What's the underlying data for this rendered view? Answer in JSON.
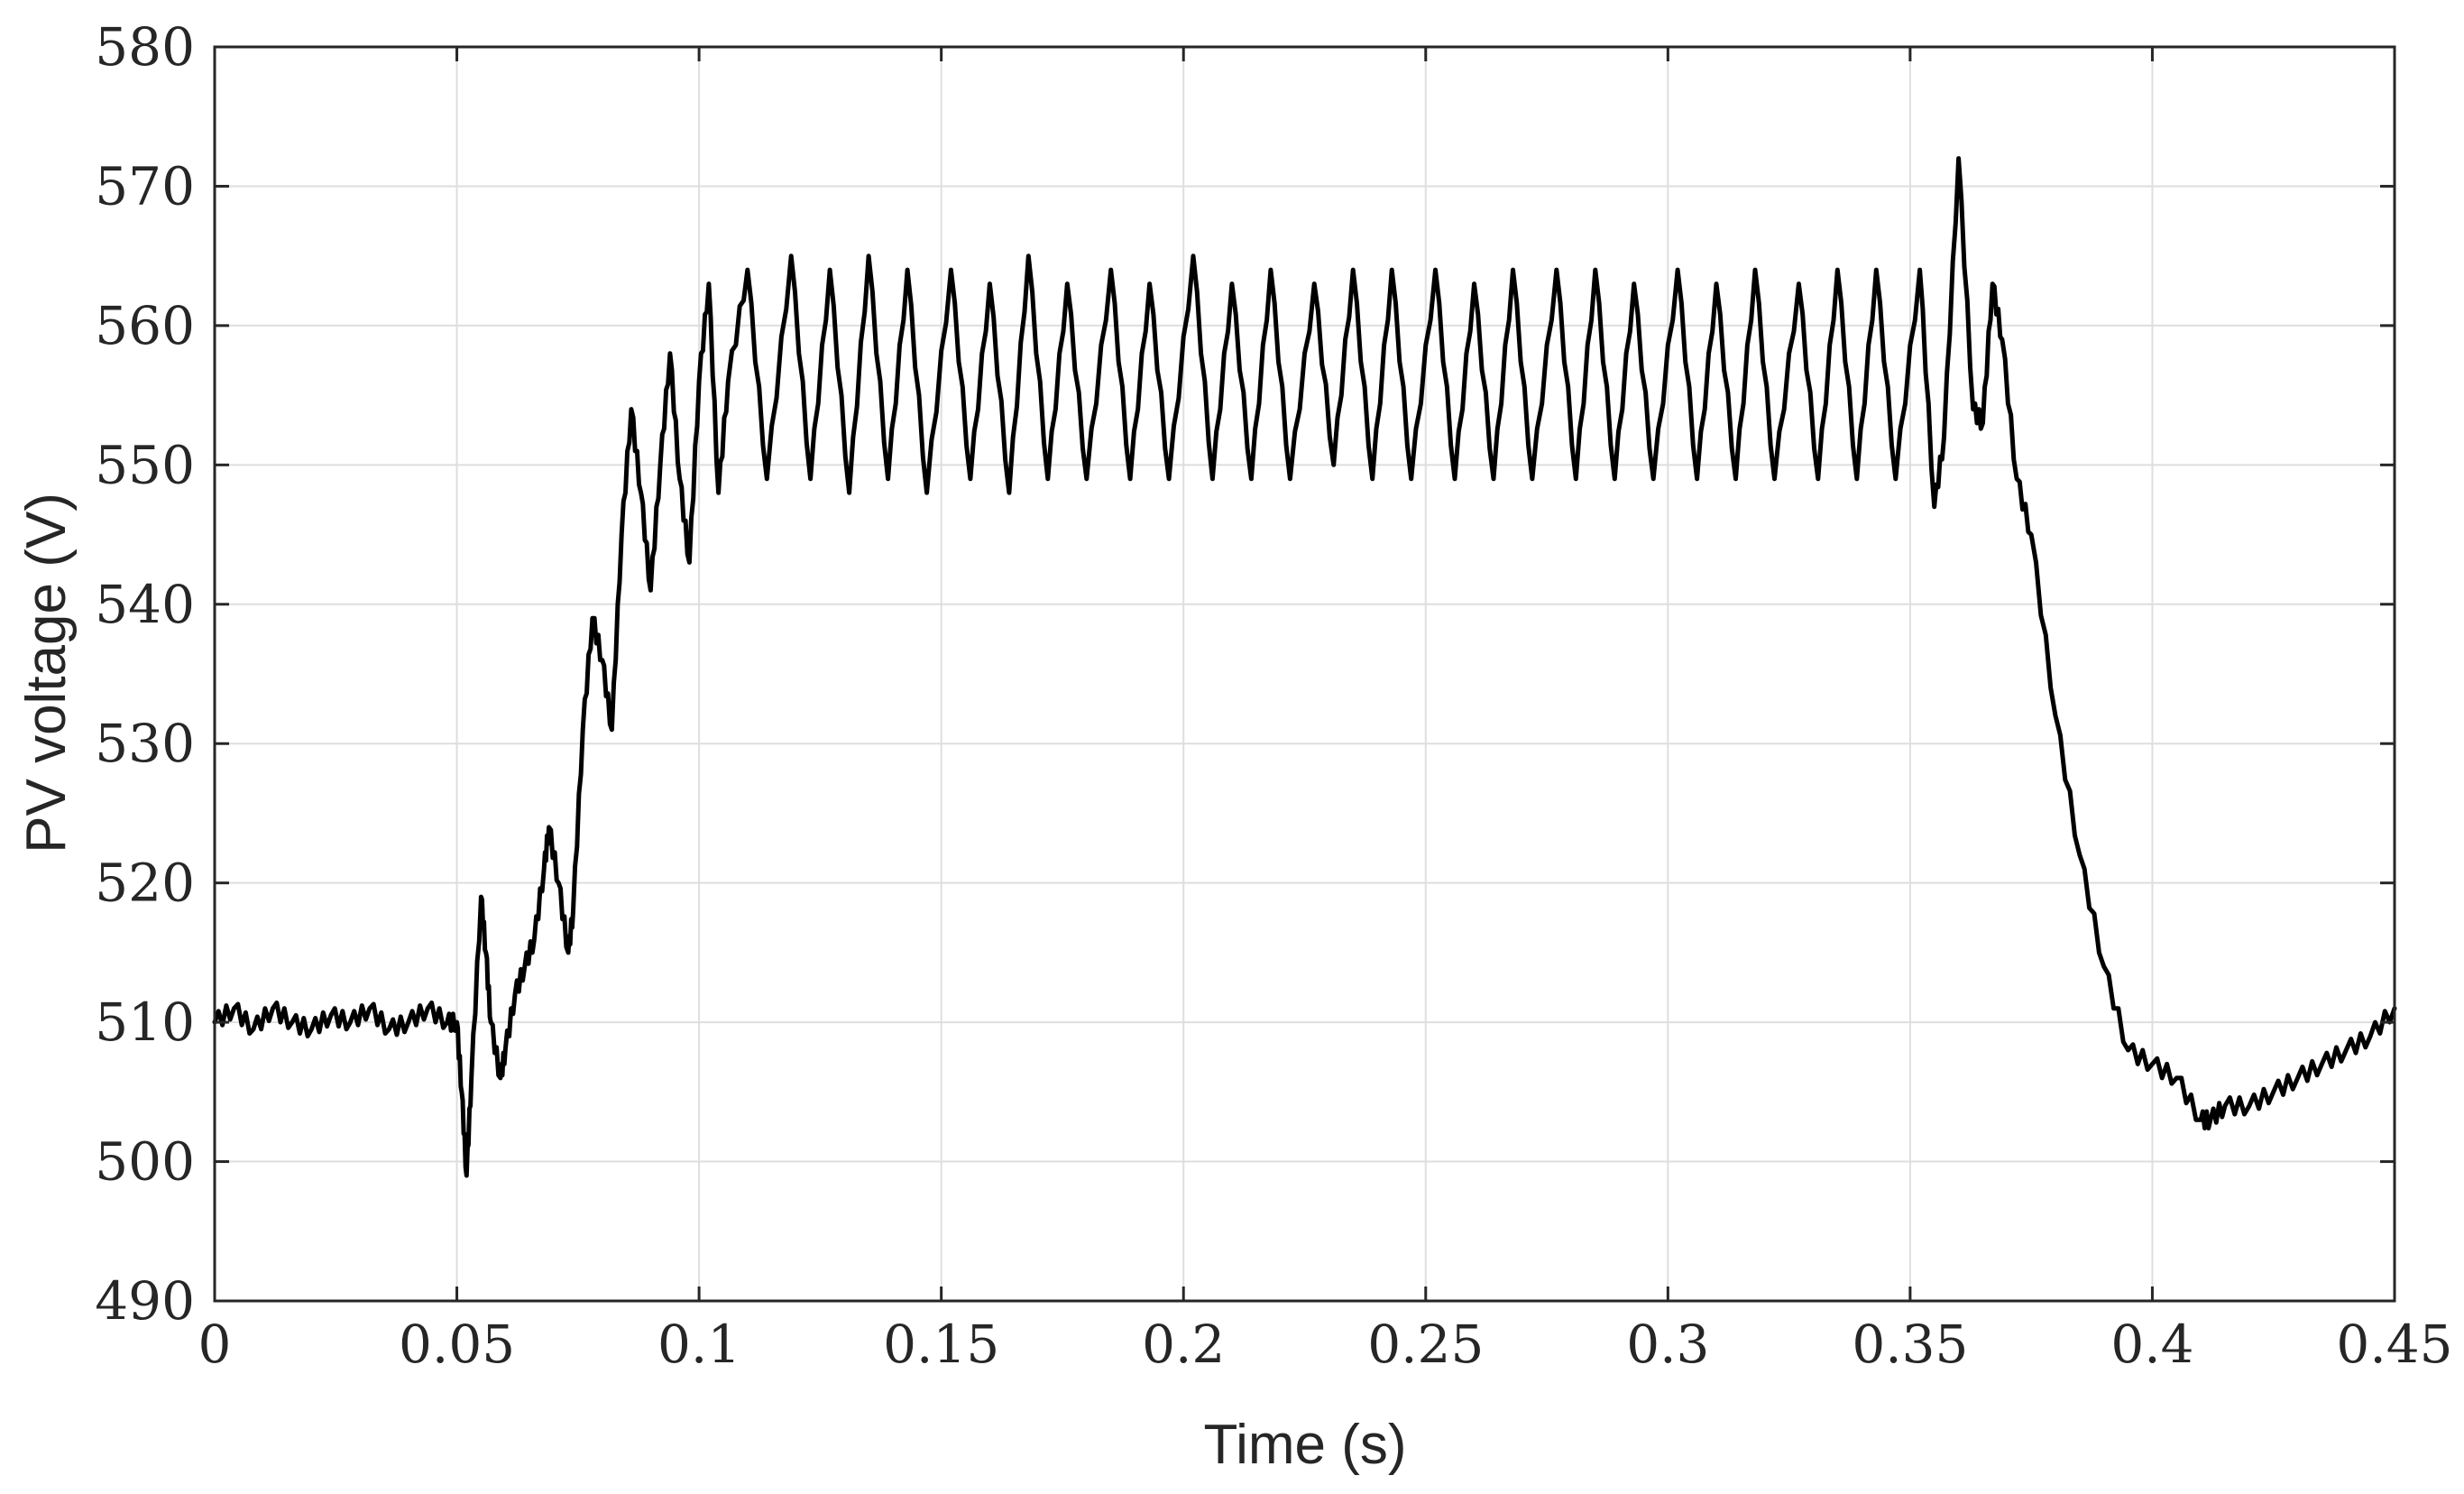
{
  "chart_data": {
    "type": "line",
    "title": "",
    "xlabel": "Time (s)",
    "ylabel": "PV voltage (V)",
    "xlim": [
      0,
      0.45
    ],
    "ylim": [
      490,
      580
    ],
    "x_ticks": [
      0,
      0.05,
      0.1,
      0.15,
      0.2,
      0.25,
      0.3,
      0.35,
      0.4,
      0.45
    ],
    "x_tick_labels": [
      "0",
      "0.05",
      "0.1",
      "0.15",
      "0.2",
      "0.25",
      "0.3",
      "0.35",
      "0.4",
      "0.45"
    ],
    "y_ticks": [
      490,
      500,
      510,
      520,
      530,
      540,
      550,
      560,
      570,
      580
    ],
    "y_tick_labels": [
      "490",
      "500",
      "510",
      "520",
      "530",
      "540",
      "550",
      "560",
      "570",
      "580"
    ],
    "grid": true,
    "legend": "none",
    "line_color": "#000000",
    "series": [
      {
        "x": [
          0,
          0.004,
          0.008,
          0.012,
          0.016,
          0.02,
          0.024,
          0.028,
          0.032,
          0.036,
          0.04,
          0.044,
          0.048,
          0.05,
          0.051,
          0.052,
          0.053,
          0.055,
          0.056,
          0.057,
          0.059,
          0.06,
          0.062,
          0.064,
          0.066,
          0.068,
          0.069,
          0.071,
          0.073,
          0.074,
          0.076,
          0.078,
          0.08,
          0.082,
          0.084,
          0.086,
          0.088,
          0.09,
          0.092,
          0.094,
          0.096,
          0.098,
          0.1,
          0.102,
          0.104,
          0.106,
          0.11,
          0.114,
          0.119,
          0.123,
          0.127,
          0.131,
          0.135,
          0.139,
          0.143,
          0.147,
          0.152,
          0.156,
          0.16,
          0.164,
          0.168,
          0.172,
          0.176,
          0.18,
          0.185,
          0.189,
          0.193,
          0.197,
          0.202,
          0.206,
          0.21,
          0.214,
          0.218,
          0.222,
          0.227,
          0.231,
          0.235,
          0.239,
          0.243,
          0.247,
          0.252,
          0.256,
          0.26,
          0.264,
          0.268,
          0.272,
          0.277,
          0.281,
          0.285,
          0.289,
          0.293,
          0.297,
          0.302,
          0.306,
          0.31,
          0.314,
          0.318,
          0.322,
          0.327,
          0.331,
          0.335,
          0.339,
          0.343,
          0.347,
          0.352,
          0.355,
          0.357,
          0.36,
          0.363,
          0.365,
          0.367,
          0.369,
          0.372,
          0.375,
          0.38,
          0.385,
          0.39,
          0.395,
          0.4,
          0.405,
          0.41,
          0.412,
          0.415,
          0.42,
          0.425,
          0.43,
          0.435,
          0.44,
          0.445,
          0.45
        ],
        "y": [
          510,
          511,
          509.5,
          511,
          510,
          509.5,
          510.5,
          510,
          511,
          509.5,
          510,
          511,
          510,
          510,
          505,
          499,
          506,
          519,
          515,
          510,
          506,
          508,
          512,
          514,
          516,
          521,
          524,
          520,
          515,
          518,
          531,
          539,
          536,
          531,
          545,
          554,
          548,
          541,
          550,
          558,
          549,
          543,
          556,
          563,
          548,
          556,
          564,
          549,
          565,
          549,
          564,
          548,
          565,
          549,
          564,
          548,
          564,
          549,
          563,
          548,
          565,
          549,
          563,
          549,
          564,
          549,
          563,
          549,
          565,
          549,
          563,
          549,
          564,
          549,
          563,
          550,
          564,
          549,
          564,
          549,
          564,
          549,
          563,
          549,
          564,
          549,
          564,
          549,
          564,
          549,
          563,
          549,
          564,
          549,
          563,
          549,
          564,
          549,
          563,
          549,
          564,
          549,
          564,
          549,
          564,
          547,
          552,
          572,
          554,
          553,
          563,
          559,
          549,
          545,
          532,
          522,
          514,
          508,
          507,
          506,
          503,
          503,
          504,
          504,
          505,
          506,
          507,
          508,
          509,
          511
        ]
      }
    ]
  }
}
